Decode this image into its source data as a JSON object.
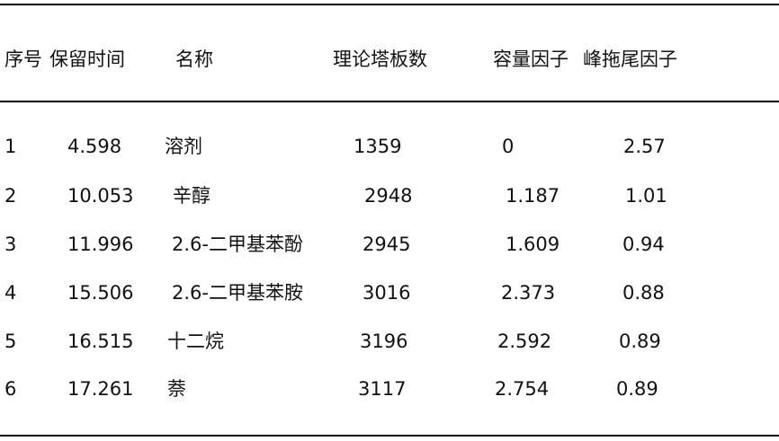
{
  "table": {
    "headers": [
      "序号",
      "保留时间",
      "名称",
      "理论塔板数",
      "容量因子",
      "峰拖尾因子"
    ],
    "rows": [
      [
        "1",
        "4.598",
        "溶剂",
        "1359",
        "0",
        "2.57"
      ],
      [
        "2",
        "10.053",
        "辛醇",
        "2948",
        "1.187",
        "1.01"
      ],
      [
        "3",
        "11.996",
        "2.6-二甲基苯酚",
        "2945",
        "1.609",
        "0.94"
      ],
      [
        "4",
        "15.506",
        "2.6-二甲基苯胺",
        "3016",
        "2.373",
        "0.88"
      ],
      [
        "5",
        "16.515",
        "十二烷",
        "3196",
        "2.592",
        "0.89"
      ],
      [
        "6",
        "17.261",
        "萘",
        "3117",
        "2.754",
        "0.89"
      ]
    ]
  }
}
